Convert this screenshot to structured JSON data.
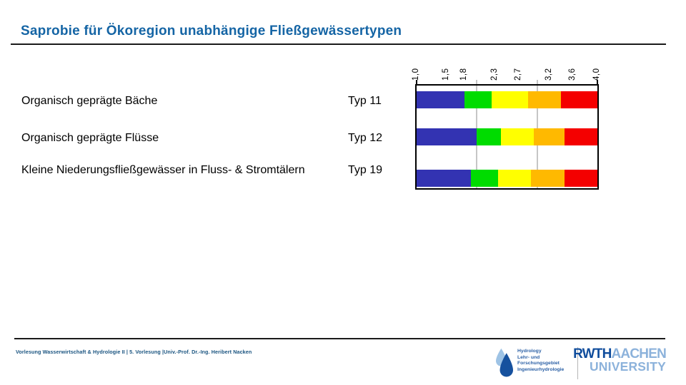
{
  "slide": {
    "title": "Saprobie für Ökoregion unabhängige Fließgewässertypen",
    "footer": "Vorlesung Wasserwirtschaft & Hydrologie II | 5. Vorlesung |Univ.-Prof. Dr.-Ing. Heribert Nacken",
    "accent_color": "#1565A5"
  },
  "chart_data": {
    "type": "bar",
    "subtype": "horizontal-stacked-range",
    "title": "Saprobie für Ökoregion unabhängige Fließgewässertypen",
    "xlim": [
      1.0,
      4.0
    ],
    "x_tick_values": [
      1.0,
      1.5,
      1.8,
      2.3,
      2.7,
      3.2,
      3.6,
      4.0
    ],
    "x_tick_labels": [
      "1,0",
      "1,5",
      "1,8",
      "2,3",
      "2,7",
      "3,2",
      "3,6",
      "4,0"
    ],
    "gridlines": [
      2.0,
      3.0
    ],
    "grid": true,
    "legend_position": "none",
    "segment_colors": [
      "#3333B2",
      "#00DC00",
      "#FFFF00",
      "#FFB900",
      "#F40000"
    ],
    "series": [
      {
        "name": "Typ 11",
        "category": "Organisch geprägte Bäche",
        "boundaries": [
          1.0,
          1.8,
          2.25,
          2.85,
          3.4,
          4.0
        ]
      },
      {
        "name": "Typ 12",
        "category": "Organisch geprägte Flüsse",
        "boundaries": [
          1.0,
          2.0,
          2.4,
          2.95,
          3.45,
          4.0
        ]
      },
      {
        "name": "Typ 19",
        "category": "Kleine Niederungsfließgewässer in Fluss- & Stromtälern",
        "boundaries": [
          1.0,
          1.9,
          2.35,
          2.9,
          3.45,
          4.0
        ]
      }
    ]
  },
  "logos": {
    "hydrology": {
      "lines": [
        "Hydrology",
        "Lehr- und",
        "Forschungsgebiet",
        "Ingenieurhydrologie"
      ]
    },
    "rwth": {
      "name": "RWTH",
      "city": "AACHEN",
      "line2": "UNIVERSITY"
    }
  }
}
